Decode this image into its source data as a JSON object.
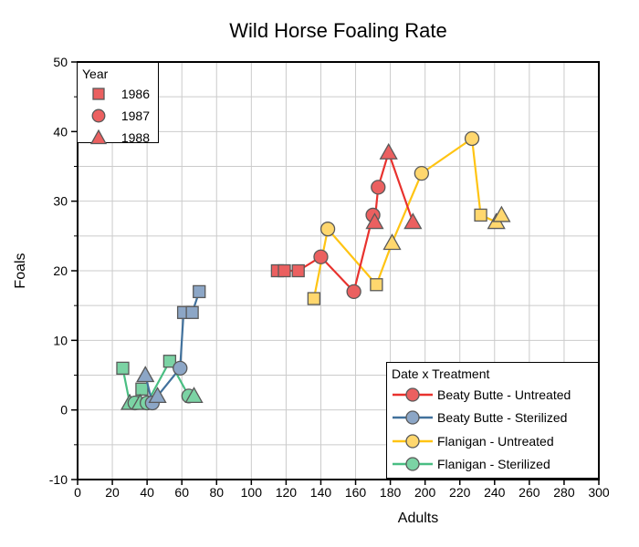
{
  "title": "Wild Horse Foaling Rate",
  "legends": {
    "year": {
      "title": "Year",
      "marker_fill": "#EB6060",
      "marker_stroke": "#595959",
      "entries": [
        {
          "year": "1986",
          "shape": "square"
        },
        {
          "year": "1987",
          "shape": "circle"
        },
        {
          "year": "1988",
          "shape": "triangle"
        }
      ]
    },
    "treatment": {
      "title": "Date x Treatment"
    }
  },
  "chart_data": {
    "type": "line",
    "title": "Wild Horse Foaling Rate",
    "xlabel": "Adults",
    "ylabel": "Foals",
    "x_axis": {
      "label": "Adults",
      "min": 0,
      "max": 300,
      "major_tick_step": 20,
      "grid_step": 20
    },
    "y_axis": {
      "label": "Foals",
      "min": -10,
      "max": 50,
      "major_tick_step": 10,
      "minor_tick_step": 5,
      "grid_step": 5
    },
    "marker_shape_by_year": {
      "1986": "square",
      "1987": "circle",
      "1988": "triangle"
    },
    "marker_stroke": "#595959",
    "grid_color": "#CBCBCB",
    "frame_color": "#000000",
    "series": [
      {
        "name": "Flanigan - Sterilized",
        "line_color": "#49BE82",
        "marker_fill": "#7BD3A4",
        "points": [
          [
            26,
            6,
            1986
          ],
          [
            30,
            1,
            1988
          ],
          [
            33,
            1,
            1987
          ],
          [
            37,
            3,
            1986
          ],
          [
            36,
            1,
            1988
          ],
          [
            40,
            1,
            1987
          ],
          [
            53,
            7,
            1986
          ],
          [
            64,
            2,
            1987
          ],
          [
            67,
            2,
            1988
          ]
        ]
      },
      {
        "name": "Beaty Butte - Sterilized",
        "line_color": "#41719C",
        "marker_fill": "#8CA6C6",
        "points": [
          [
            39,
            5,
            1988
          ],
          [
            43,
            1,
            1987
          ],
          [
            46,
            2,
            1988
          ],
          [
            59,
            6,
            1987
          ],
          [
            61,
            14,
            1986
          ],
          [
            66,
            14,
            1986
          ],
          [
            70,
            17,
            1986
          ]
        ]
      },
      {
        "name": "Flanigan - Untreated",
        "line_color": "#FFC413",
        "marker_fill": "#FFD76E",
        "points": [
          [
            136,
            16,
            1986
          ],
          [
            144,
            26,
            1987
          ],
          [
            172,
            18,
            1986
          ],
          [
            181,
            24,
            1988
          ],
          [
            198,
            34,
            1987
          ],
          [
            227,
            39,
            1987
          ],
          [
            232,
            28,
            1986
          ],
          [
            241,
            27,
            1988
          ],
          [
            244,
            28,
            1988
          ]
        ]
      },
      {
        "name": "Beaty Butte - Untreated",
        "line_color": "#E8322E",
        "marker_fill": "#EB6060",
        "points": [
          [
            115,
            20,
            1986
          ],
          [
            119,
            20,
            1986
          ],
          [
            127,
            20,
            1986
          ],
          [
            140,
            22,
            1987
          ],
          [
            159,
            17,
            1987
          ],
          [
            170,
            28,
            1987
          ],
          [
            171,
            27,
            1988
          ],
          [
            173,
            32,
            1987
          ],
          [
            179,
            37,
            1988
          ],
          [
            193,
            27,
            1988
          ]
        ]
      }
    ],
    "legend_order": [
      "Beaty Butte - Untreated",
      "Beaty Butte - Sterilized",
      "Flanigan - Untreated",
      "Flanigan - Sterilized"
    ]
  }
}
